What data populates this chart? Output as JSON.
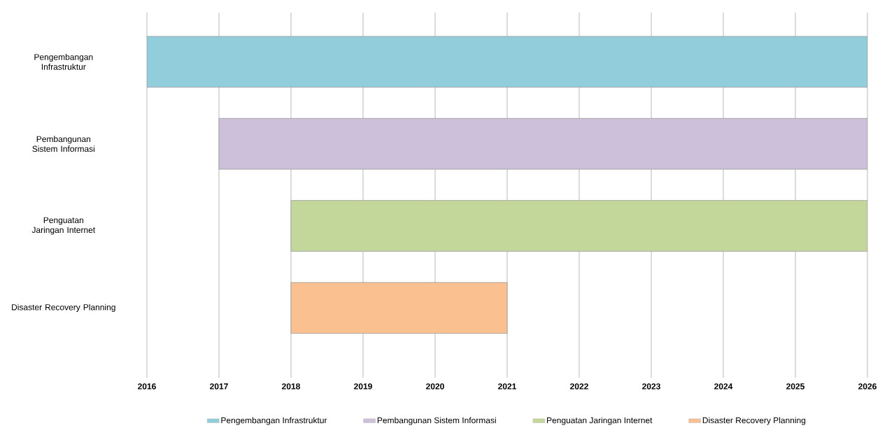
{
  "chart_data": {
    "type": "bar",
    "orientation": "horizontal",
    "categories": [
      "Pengembangan Infrastruktur",
      "Pembangunan Sistem Informasi",
      "Penguatan Jaringan Internet",
      "Disaster Recovery Planning"
    ],
    "series": [
      {
        "name": "Pengembangan Infrastruktur",
        "color": "#92cddc",
        "values": [
          10,
          null,
          null,
          null
        ],
        "base": [
          2016,
          null,
          null,
          null
        ]
      },
      {
        "name": "Pembangunan Sistem Informasi",
        "color": "#ccc0da",
        "values": [
          null,
          9,
          null,
          null
        ],
        "base": [
          null,
          2017,
          null,
          null
        ]
      },
      {
        "name": "Penguatan Jaringan Internet",
        "color": "#c4d79b",
        "values": [
          null,
          null,
          8,
          null
        ],
        "base": [
          null,
          null,
          2018,
          null
        ]
      },
      {
        "name": "Disaster Recovery Planning",
        "color": "#fac090",
        "values": [
          null,
          null,
          null,
          3
        ],
        "base": [
          null,
          null,
          null,
          2018
        ]
      }
    ],
    "xlim": [
      2016,
      2026
    ],
    "xticks": [
      2016,
      2017,
      2018,
      2019,
      2020,
      2021,
      2022,
      2023,
      2024,
      2025,
      2026
    ],
    "grid": "x",
    "legend": "bottom"
  }
}
